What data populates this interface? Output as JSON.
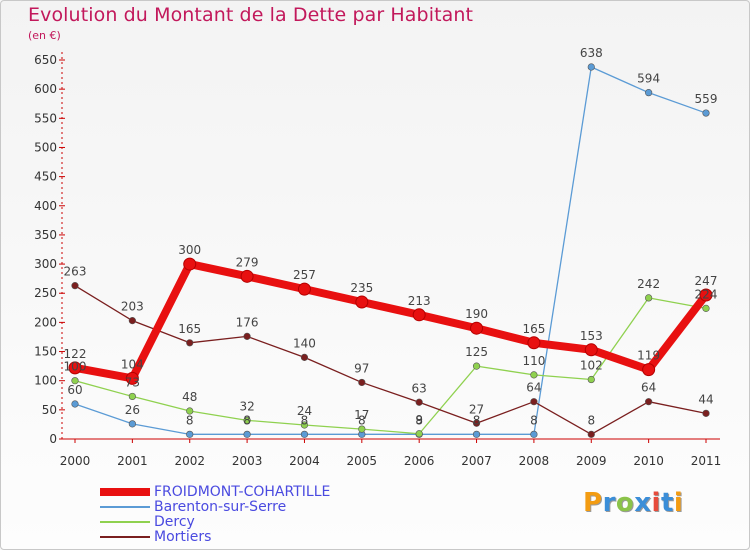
{
  "title": "Evolution du Montant de la Dette par Habitant",
  "unit_label": "(en €)",
  "logo": {
    "letters": [
      "P",
      "r",
      "o",
      "x",
      "i",
      "t",
      "i"
    ],
    "colors": [
      "#f39c12",
      "#3b8ed8",
      "#8bc34a",
      "#3b8ed8",
      "#e74c3c",
      "#3b8ed8",
      "#f39c12"
    ]
  },
  "chart_data": {
    "type": "line",
    "title": "Evolution du Montant de la Dette par Habitant",
    "ylabel": "(en €)",
    "xlabel": "",
    "x": [
      "2000",
      "2001",
      "2002",
      "2003",
      "2004",
      "2005",
      "2006",
      "2007",
      "2008",
      "2009",
      "2010",
      "2011"
    ],
    "ylim": [
      0,
      650
    ],
    "yticks": [
      0,
      50,
      100,
      150,
      200,
      250,
      300,
      350,
      400,
      450,
      500,
      550,
      600,
      650
    ],
    "grid": false,
    "legend_position": "bottom-left",
    "series": [
      {
        "name": "FROIDMONT-COHARTILLE",
        "color": "#e81010",
        "emphasis": true,
        "values": [
          122,
          104,
          300,
          279,
          257,
          235,
          213,
          190,
          165,
          153,
          119,
          247
        ]
      },
      {
        "name": "Barenton-sur-Serre",
        "color": "#5b9bd5",
        "emphasis": false,
        "values": [
          60,
          26,
          8,
          8,
          8,
          8,
          8,
          8,
          8,
          638,
          594,
          559
        ]
      },
      {
        "name": "Dercy",
        "color": "#8fd14f",
        "emphasis": false,
        "values": [
          100,
          73,
          48,
          32,
          24,
          17,
          9,
          125,
          110,
          102,
          242,
          224
        ]
      },
      {
        "name": "Mortiers",
        "color": "#7a1f1f",
        "emphasis": false,
        "values": [
          263,
          203,
          165,
          176,
          140,
          97,
          63,
          27,
          64,
          8,
          64,
          44
        ]
      }
    ]
  }
}
